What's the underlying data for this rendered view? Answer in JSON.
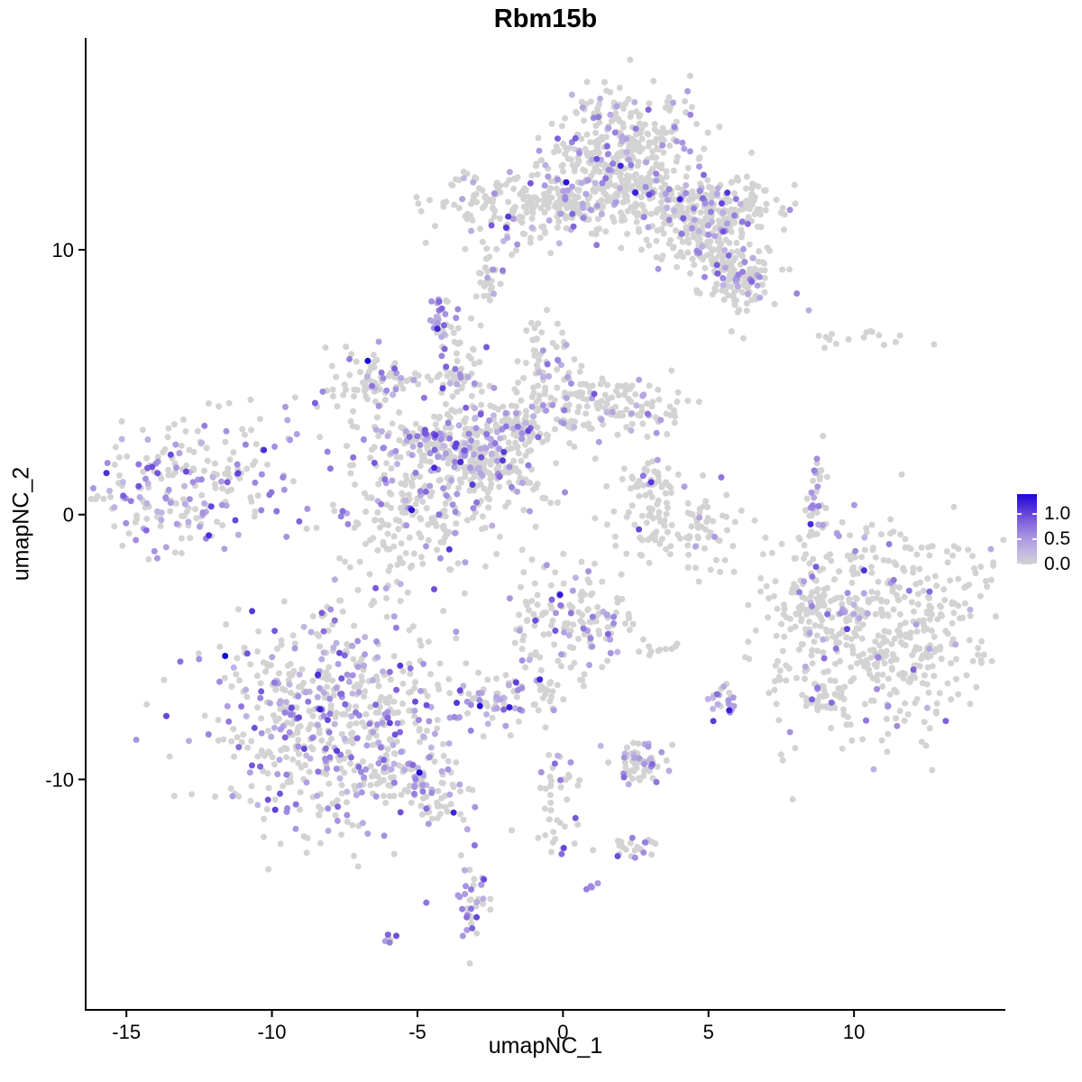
{
  "chart_data": {
    "type": "scatter",
    "title": "Rbm15b",
    "xlabel": "umapNC_1",
    "ylabel": "umapNC_2",
    "xlim": [
      -16.4,
      15.2
    ],
    "ylim": [
      -18.7,
      18.0
    ],
    "x_ticks": [
      -15,
      -10,
      -5,
      0,
      5,
      10
    ],
    "y_ticks": [
      -10,
      0,
      10
    ],
    "grid": false,
    "legend_position": "right",
    "colorbar": {
      "tick_labels": [
        "1.0",
        "0.5",
        "0.0"
      ],
      "tick_values": [
        1.0,
        0.5,
        0.0
      ],
      "vmin": 0.0,
      "vmax": 1.4
    },
    "point_count_total": 4375,
    "seed": 12,
    "clusters": [
      {
        "name": "top-main-upper",
        "cx": 2.2,
        "cy": 14.6,
        "sx": 1.05,
        "sy": 0.75,
        "rot": 0,
        "n": 160,
        "frac": 0.15
      },
      {
        "name": "top-main-core",
        "cx": 1.9,
        "cy": 12.7,
        "sx": 1.25,
        "sy": 1.0,
        "rot": 0,
        "n": 260,
        "frac": 0.17
      },
      {
        "name": "top-right-wing",
        "cx": 4.3,
        "cy": 11.5,
        "sx": 1.3,
        "sy": 0.7,
        "rot": -15,
        "n": 200,
        "frac": 0.15
      },
      {
        "name": "top-right-tip",
        "cx": 6.0,
        "cy": 11.7,
        "sx": 0.7,
        "sy": 0.5,
        "rot": 0,
        "n": 80,
        "frac": 0.2
      },
      {
        "name": "right-arm-down",
        "cx": 5.3,
        "cy": 9.7,
        "sx": 1.1,
        "sy": 0.6,
        "rot": -35,
        "n": 150,
        "frac": 0.18
      },
      {
        "name": "right-arm-tip",
        "cx": 6.3,
        "cy": 8.6,
        "sx": 0.5,
        "sy": 0.45,
        "rot": 0,
        "n": 50,
        "frac": 0.25
      },
      {
        "name": "top-left-band",
        "cx": -1.5,
        "cy": 11.6,
        "sx": 1.4,
        "sy": 0.75,
        "rot": 0,
        "n": 170,
        "frac": 0.2
      },
      {
        "name": "top-bridge",
        "cx": 0.3,
        "cy": 11.9,
        "sx": 0.9,
        "sy": 0.3,
        "rot": 0,
        "n": 50,
        "frac": 0.1
      },
      {
        "name": "small-mid-top",
        "cx": -2.5,
        "cy": 8.95,
        "sx": 0.25,
        "sy": 0.55,
        "rot": 0,
        "n": 28,
        "frac": 0.12
      },
      {
        "name": "dense-purple-knot",
        "cx": -4.2,
        "cy": 7.3,
        "sx": 0.28,
        "sy": 0.48,
        "rot": 0,
        "n": 30,
        "frac": 0.75
      },
      {
        "name": "star-top-arm",
        "cx": -3.5,
        "cy": 5.3,
        "sx": 0.45,
        "sy": 0.85,
        "rot": 0,
        "n": 60,
        "frac": 0.2
      },
      {
        "name": "star-upper-left",
        "cx": -6.5,
        "cy": 5.0,
        "sx": 0.9,
        "sy": 0.55,
        "rot": 0,
        "n": 90,
        "frac": 0.22
      },
      {
        "name": "star-left-arm",
        "cx": -4.5,
        "cy": 2.7,
        "sx": 1.15,
        "sy": 0.5,
        "rot": -12,
        "n": 120,
        "frac": 0.35
      },
      {
        "name": "star-core",
        "cx": -2.8,
        "cy": 2.2,
        "sx": 0.95,
        "sy": 0.8,
        "rot": 0,
        "n": 160,
        "frac": 0.3
      },
      {
        "name": "star-lower-lobe",
        "cx": -4.8,
        "cy": 0.2,
        "sx": 1.45,
        "sy": 1.35,
        "rot": 0,
        "n": 240,
        "frac": 0.17
      },
      {
        "name": "star-right-arm",
        "cx": -0.4,
        "cy": 4.0,
        "sx": 1.45,
        "sy": 0.7,
        "rot": 12,
        "n": 130,
        "frac": 0.15
      },
      {
        "name": "star-east-arm",
        "cx": 2.2,
        "cy": 4.1,
        "sx": 1.0,
        "sy": 0.55,
        "rot": 0,
        "n": 80,
        "frac": 0.18
      },
      {
        "name": "star-north-spur",
        "cx": -0.6,
        "cy": 5.9,
        "sx": 0.4,
        "sy": 0.8,
        "rot": 0,
        "n": 45,
        "frac": 0.12
      },
      {
        "name": "diag-streak",
        "cx": -1.6,
        "cy": 1.55,
        "sx": 0.9,
        "sy": 0.1,
        "rot": -40,
        "n": 30,
        "frac": 0.04
      },
      {
        "name": "star-neck",
        "cx": -1.5,
        "cy": 3.2,
        "sx": 0.75,
        "sy": 0.45,
        "rot": 0,
        "n": 60,
        "frac": 0.2
      },
      {
        "name": "far-left",
        "cx": -12.8,
        "cy": 1.3,
        "sx": 1.9,
        "sy": 1.25,
        "rot": 8,
        "n": 240,
        "frac": 0.38
      },
      {
        "name": "crescent-upper",
        "cx": 3.1,
        "cy": 1.3,
        "sx": 0.45,
        "sy": 0.4,
        "rot": 0,
        "n": 35,
        "frac": 0.05
      },
      {
        "name": "crescent-main",
        "cx": 3.9,
        "cy": -0.3,
        "sx": 1.25,
        "sy": 0.8,
        "rot": -20,
        "n": 110,
        "frac": 0.07
      },
      {
        "name": "right-streak",
        "cx": 8.75,
        "cy": 0.45,
        "sx": 0.16,
        "sy": 0.95,
        "rot": 0,
        "n": 35,
        "frac": 0.3
      },
      {
        "name": "far-right-sparse",
        "cx": 9.3,
        "cy": 6.75,
        "sx": 1.55,
        "sy": 0.25,
        "rot": 0,
        "n": 18,
        "frac": 0.04
      },
      {
        "name": "right-big",
        "cx": 10.9,
        "cy": -4.4,
        "sx": 2.0,
        "sy": 1.9,
        "rot": 0,
        "n": 520,
        "frac": 0.07
      },
      {
        "name": "right-big-west-spur",
        "cx": 8.6,
        "cy": -3.3,
        "sx": 0.4,
        "sy": 1.0,
        "rot": 0,
        "n": 50,
        "frac": 0.1
      },
      {
        "name": "right-big-south-tail",
        "cx": 8.9,
        "cy": -6.9,
        "sx": 0.35,
        "sy": 0.4,
        "rot": 0,
        "n": 30,
        "frac": 0.1
      },
      {
        "name": "center-mid",
        "cx": 0.3,
        "cy": -3.9,
        "sx": 1.05,
        "sy": 1.15,
        "rot": 0,
        "n": 150,
        "frac": 0.27
      },
      {
        "name": "center-mid-tail",
        "cx": -0.9,
        "cy": -6.0,
        "sx": 0.25,
        "sy": 0.85,
        "rot": 20,
        "n": 25,
        "frac": 0.1
      },
      {
        "name": "tiny-pair",
        "cx": 3.3,
        "cy": -5.1,
        "sx": 0.35,
        "sy": 0.18,
        "rot": 0,
        "n": 10,
        "frac": 0.05
      },
      {
        "name": "bottom-left-big",
        "cx": -7.9,
        "cy": -7.7,
        "sx": 2.2,
        "sy": 2.1,
        "rot": 0,
        "n": 620,
        "frac": 0.3
      },
      {
        "name": "bottom-left-tail",
        "cx": -5.0,
        "cy": -10.2,
        "sx": 1.05,
        "sy": 0.5,
        "rot": -28,
        "n": 90,
        "frac": 0.3
      },
      {
        "name": "center-left-small",
        "cx": -2.1,
        "cy": -7.0,
        "sx": 0.6,
        "sy": 0.5,
        "rot": 0,
        "n": 55,
        "frac": 0.45
      },
      {
        "name": "small-right-blob",
        "cx": 5.6,
        "cy": -7.1,
        "sx": 0.28,
        "sy": 0.33,
        "rot": 0,
        "n": 22,
        "frac": 0.5
      },
      {
        "name": "small-center",
        "cx": 2.6,
        "cy": -9.4,
        "sx": 0.5,
        "sy": 0.45,
        "rot": 0,
        "n": 60,
        "frac": 0.35
      },
      {
        "name": "south-trail-upper",
        "cx": -0.15,
        "cy": -10.3,
        "sx": 0.3,
        "sy": 0.85,
        "rot": 0,
        "n": 25,
        "frac": 0.25
      },
      {
        "name": "south-trail-lower",
        "cx": -0.1,
        "cy": -12.2,
        "sx": 0.3,
        "sy": 0.5,
        "rot": 0,
        "n": 15,
        "frac": 0.3
      },
      {
        "name": "south-tiny",
        "cx": 2.4,
        "cy": -12.6,
        "sx": 0.55,
        "sy": 0.22,
        "rot": 0,
        "n": 22,
        "frac": 0.3
      },
      {
        "name": "south-crescent",
        "cx": -3.1,
        "cy": -14.5,
        "sx": 0.25,
        "sy": 0.9,
        "rot": 0,
        "n": 40,
        "frac": 0.5
      },
      {
        "name": "south-dot",
        "cx": -5.9,
        "cy": -16.0,
        "sx": 0.14,
        "sy": 0.14,
        "rot": 0,
        "n": 6,
        "frac": 0.5
      },
      {
        "name": "south-pair",
        "cx": 1.0,
        "cy": -14.0,
        "sx": 0.14,
        "sy": 0.1,
        "rot": 0,
        "n": 4,
        "frac": 0.8
      }
    ]
  },
  "style": {
    "background": "#ffffff",
    "axis_color": "#000000",
    "text_color": "#000000",
    "point_radius": 3.5,
    "color_low": "#d3d3d3",
    "color_high": "#1c07d8",
    "color_stops": [
      {
        "v": 0.0,
        "c": "#d3d3d3"
      },
      {
        "v": 0.3,
        "c": "#beb2e2"
      },
      {
        "v": 0.6,
        "c": "#a18ce0"
      },
      {
        "v": 0.9,
        "c": "#7a5bdb"
      },
      {
        "v": 1.2,
        "c": "#4325d8"
      },
      {
        "v": 1.4,
        "c": "#1c07d8"
      }
    ]
  }
}
